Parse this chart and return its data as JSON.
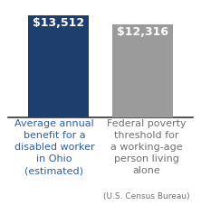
{
  "values": [
    13512,
    12316
  ],
  "labels": [
    "$13,512",
    "$12,316"
  ],
  "bar_colors": [
    "#1e3f6e",
    "#9b9b9b"
  ],
  "label_color": "#ffffff",
  "left_label_color": "#2e5fa3",
  "right_label_color": "#707070",
  "background_color": "#ffffff",
  "ylim": [
    0,
    15000
  ],
  "bar_width": 0.72,
  "label_fontsize": 9.0,
  "xlabel_fontsize_main": 8.0,
  "xlabel_fontsize_sub": 6.5,
  "left_xlabel": "Average annual\nbenefit for a\ndisabled worker\nin Ohio\n(estimated)",
  "right_xlabel_main": "Federal poverty\nthreshold for\na working-age\nperson living\nalone",
  "right_xlabel_sub": "(U.S. Census Bureau)"
}
